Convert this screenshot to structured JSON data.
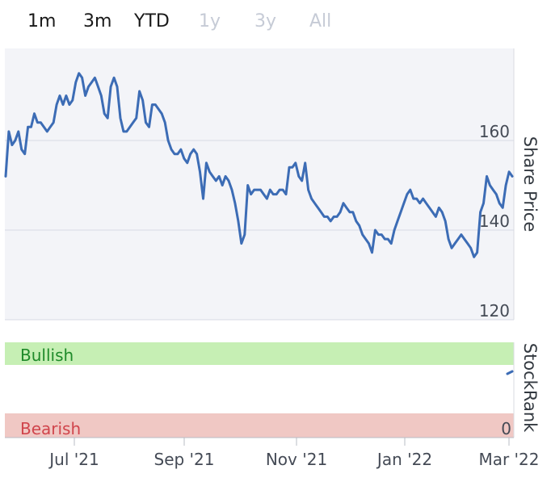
{
  "range_tabs": [
    {
      "label": "1m",
      "enabled": true
    },
    {
      "label": "3m",
      "enabled": true
    },
    {
      "label": "YTD",
      "enabled": true
    },
    {
      "label": "1y",
      "enabled": false
    },
    {
      "label": "3y",
      "enabled": false
    },
    {
      "label": "All",
      "enabled": false
    }
  ],
  "colors": {
    "line": "#3c6cb5",
    "plot_bg": "#f3f4f8",
    "bullish_band": "#c6efb4",
    "bullish_text": "#1f8a2a",
    "bearish_band": "#f0c8c4",
    "bearish_text": "#d0454c"
  },
  "chart_data": [
    {
      "type": "line",
      "ylabel": "Share Price",
      "ylim": [
        100,
        180
      ],
      "yticks": [
        120,
        140,
        160
      ],
      "grid": true,
      "x_ticks": [
        "Jul '21",
        "Sep '21",
        "Nov '21",
        "Jan '22",
        "Mar '22"
      ],
      "series": [
        {
          "values": [
            152,
            162,
            159,
            160,
            162,
            158,
            157,
            163,
            163,
            166,
            164,
            164,
            163,
            162,
            163,
            164,
            168,
            170,
            168,
            170,
            168,
            169,
            173,
            175,
            174,
            170,
            172,
            173,
            174,
            172,
            170,
            166,
            165,
            172,
            174,
            172,
            165,
            162,
            162,
            163,
            164,
            165,
            171,
            169,
            164,
            163,
            168,
            168,
            167,
            166,
            164,
            160,
            158,
            157,
            157,
            158,
            156,
            155,
            157,
            158,
            157,
            153,
            147,
            155,
            153,
            152,
            151,
            152,
            150,
            152,
            151,
            149,
            146,
            142,
            137,
            139,
            150,
            148,
            149,
            149,
            149,
            148,
            147,
            149,
            148,
            148,
            149,
            149,
            148,
            154,
            154,
            155,
            152,
            151,
            155,
            149,
            147,
            146,
            145,
            144,
            143,
            143,
            142,
            143,
            143,
            144,
            146,
            145,
            144,
            144,
            142,
            141,
            139,
            138,
            137,
            135,
            140,
            139,
            139,
            138,
            138,
            137,
            140,
            142,
            144,
            146,
            148,
            149,
            147,
            147,
            146,
            147,
            146,
            145,
            144,
            143,
            145,
            144,
            142,
            138,
            136,
            137,
            138,
            139,
            138,
            137,
            136,
            134,
            135,
            144,
            146,
            152,
            150,
            149,
            148,
            146,
            145,
            150,
            153,
            152
          ]
        }
      ]
    },
    {
      "type": "line",
      "ylabel": "StockRank",
      "bands": [
        "Bullish",
        "Bearish"
      ],
      "yticks": [
        0
      ]
    }
  ]
}
